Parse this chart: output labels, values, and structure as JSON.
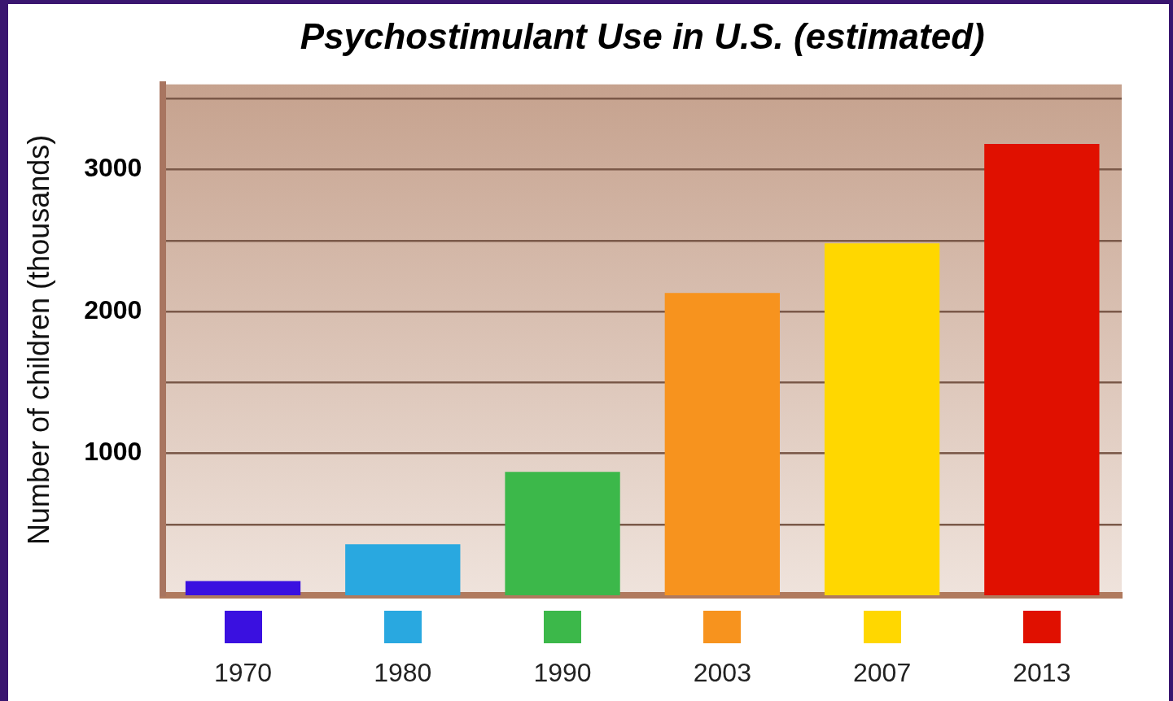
{
  "chart_data": {
    "type": "bar",
    "title": "Psychostimulant Use in U.S. (estimated)",
    "ylabel": "Number of children (thousands)",
    "categories": [
      "1970",
      "1980",
      "1990",
      "2003",
      "2007",
      "2013"
    ],
    "values": [
      100,
      360,
      870,
      2130,
      2480,
      3180
    ],
    "colors": [
      "#3a10e0",
      "#29a8e0",
      "#3cb84a",
      "#f7931e",
      "#ffd700",
      "#e01000"
    ],
    "ylim": [
      0,
      3600
    ],
    "yticks": [
      {
        "value": 500,
        "label": null
      },
      1000,
      {
        "value": 1500,
        "label": null
      },
      2000,
      {
        "value": 2500,
        "label": null
      },
      3000,
      {
        "value": 3500,
        "label": null
      }
    ],
    "grid": "y"
  }
}
